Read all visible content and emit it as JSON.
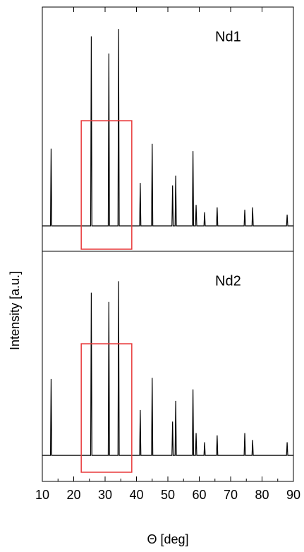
{
  "chart_data": {
    "type": "line",
    "xlabel": "Θ [deg]",
    "ylabel": "Intensity [a.u.]",
    "xlim": [
      10,
      90
    ],
    "xticks": [
      10,
      20,
      30,
      40,
      50,
      60,
      70,
      80,
      90
    ],
    "color": "#000000",
    "highlight": [
      22.4,
      38.5
    ],
    "highlight_color": "#e8393a",
    "x": [
      10,
      12.6,
      12.8,
      13.0,
      25.4,
      25.6,
      25.8,
      31.0,
      31.2,
      31.4,
      34.1,
      34.3,
      34.5,
      41.0,
      41.2,
      41.4,
      44.8,
      45.0,
      45.2,
      51.3,
      51.5,
      51.7,
      52.3,
      52.5,
      52.7,
      57.8,
      58.0,
      58.2,
      58.8,
      59.0,
      59.2,
      61.5,
      61.7,
      61.9,
      65.5,
      65.7,
      65.9,
      74.3,
      74.5,
      74.7,
      76.8,
      77.0,
      77.2,
      87.8,
      88.0,
      88.2,
      90
    ],
    "series": [
      {
        "name": "Nd1",
        "ylim": [
          0,
          100
        ],
        "values": [
          10.4,
          10.4,
          42,
          10.4,
          10.4,
          88,
          10.4,
          10.4,
          81,
          10.4,
          10.4,
          91,
          10.4,
          10.4,
          28,
          10.4,
          10.4,
          44,
          10.4,
          10.4,
          27,
          10.4,
          10.4,
          31,
          10.4,
          10.4,
          41,
          10.4,
          10.4,
          19,
          10.4,
          10.4,
          16,
          10.4,
          10.4,
          18,
          10.4,
          10.4,
          17,
          10.4,
          10.4,
          18,
          10.4,
          10.4,
          15,
          10.4,
          10.4
        ]
      },
      {
        "name": "Nd2",
        "ylim": [
          0,
          100
        ],
        "values": [
          11.3,
          11.3,
          44.5,
          11.3,
          11.3,
          82,
          11.3,
          11.3,
          78,
          11.3,
          11.3,
          87,
          11.3,
          11.3,
          31,
          11.3,
          11.3,
          45,
          11.3,
          11.3,
          26,
          11.3,
          11.3,
          35,
          11.3,
          11.3,
          40,
          11.3,
          11.3,
          21,
          11.3,
          11.3,
          17,
          11.3,
          11.3,
          20,
          11.3,
          11.3,
          21,
          11.3,
          11.3,
          18,
          11.3,
          11.3,
          17,
          11.3,
          11.3
        ]
      }
    ]
  }
}
